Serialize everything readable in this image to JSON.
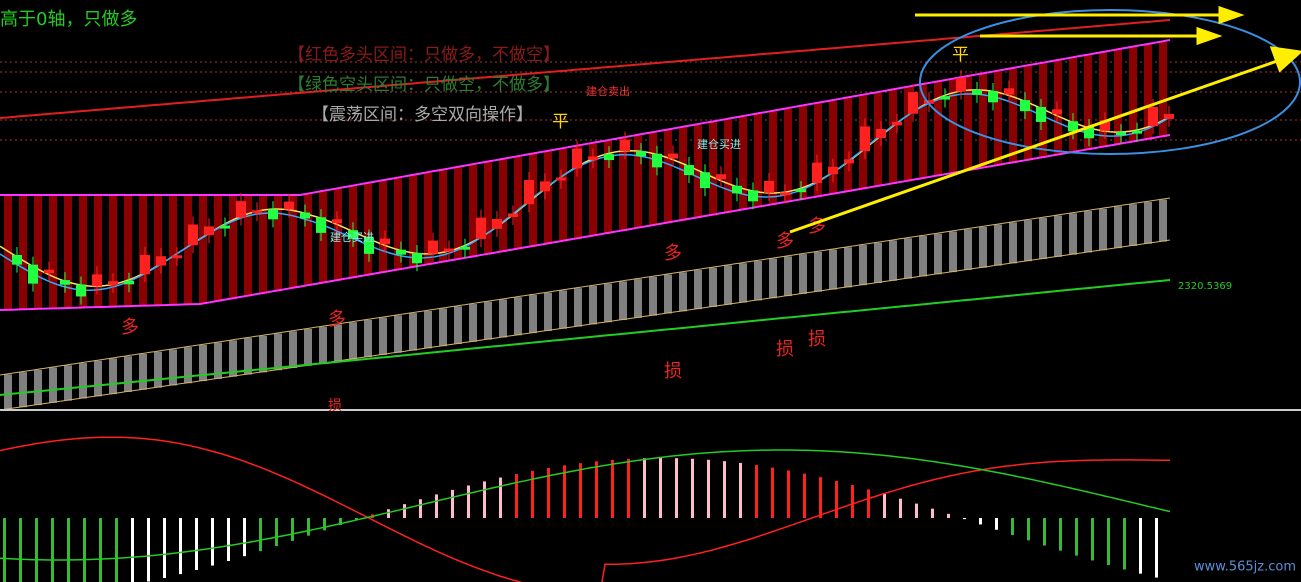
{
  "header": {
    "title": "高于0轴，只做多"
  },
  "legend": {
    "bull": "【红色多头区间：只做多，不做空】",
    "bear": "【绿色空头区间：只做空，不做多】",
    "range": "【震荡区间：多空双向操作】"
  },
  "signals": {
    "sell_open": "建仓卖出",
    "buy_open": [
      "建仓买进",
      "建仓买进"
    ],
    "close": [
      "平",
      "平"
    ],
    "long": [
      "多",
      "多",
      "多",
      "多",
      "多"
    ],
    "stop": [
      "损",
      "损",
      "损",
      "损"
    ]
  },
  "price_label": "2320.5369",
  "watermark": "www.565jz.com"
}
